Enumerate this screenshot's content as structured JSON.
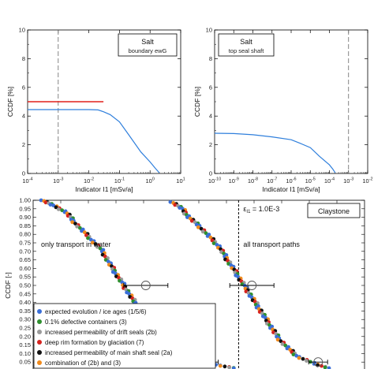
{
  "chart_data": [
    {
      "type": "line",
      "panel": "top-left",
      "box_title": "Salt",
      "box_subtitle": "boundary ewG",
      "xlabel": "Indicator I1 [mSv/a]",
      "ylabel": "CCDF [%]",
      "xscale": "log",
      "xlim": [
        0.0001,
        10
      ],
      "ylim": [
        0,
        10
      ],
      "xtick_exponents": [
        "-4",
        "-3",
        "-2",
        "-1",
        "0",
        "1"
      ],
      "yticks": [
        "0",
        "2",
        "4",
        "6",
        "8",
        "10"
      ],
      "reference_line": {
        "y": 5.0,
        "x_end": 0.03,
        "color": "#e0201c"
      },
      "vline_x": 0.001,
      "series": [
        {
          "color": "#2f7fdc",
          "points": [
            [
              0.0001,
              4.45
            ],
            [
              0.003,
              4.45
            ],
            [
              0.01,
              4.45
            ],
            [
              0.02,
              4.43
            ],
            [
              0.03,
              4.3
            ],
            [
              0.05,
              4.1
            ],
            [
              0.1,
              3.6
            ],
            [
              0.2,
              2.7
            ],
            [
              0.5,
              1.5
            ],
            [
              1.0,
              0.8
            ],
            [
              1.5,
              0.35
            ],
            [
              2.0,
              0.05
            ]
          ]
        }
      ]
    },
    {
      "type": "line",
      "panel": "top-right",
      "box_title": "Salt",
      "box_subtitle": "top seal shaft",
      "xlabel": "Indicator I1 [mSv/a]",
      "ylabel": "CCDF [%]",
      "xscale": "log",
      "xlim": [
        1e-10,
        0.01
      ],
      "ylim": [
        0,
        10
      ],
      "xtick_exponents": [
        "-10",
        "-9",
        "-8",
        "-7",
        "-6",
        "-5",
        "-4",
        "-3",
        "-2"
      ],
      "yticks": [
        "0",
        "2",
        "4",
        "6",
        "8",
        "10"
      ],
      "vline_x": 0.001,
      "series": [
        {
          "color": "#2f7fdc",
          "points": [
            [
              1e-10,
              2.8
            ],
            [
              1e-09,
              2.78
            ],
            [
              1e-08,
              2.7
            ],
            [
              1e-07,
              2.55
            ],
            [
              1e-06,
              2.35
            ],
            [
              3e-06,
              2.1
            ],
            [
              1e-05,
              1.8
            ],
            [
              3e-05,
              1.2
            ],
            [
              0.0001,
              0.6
            ],
            [
              0.00015,
              0.3
            ],
            [
              0.0002,
              0.05
            ]
          ]
        }
      ]
    },
    {
      "type": "scatter",
      "panel": "bottom",
      "box_title": "Claystone",
      "ylabel": "CCDF [-]",
      "ylim": [
        0,
        1
      ],
      "yticks": [
        "0.00",
        "0.05",
        "0.10",
        "0.15",
        "0.20",
        "0.25",
        "0.30",
        "0.35",
        "0.40",
        "0.45",
        "0.50",
        "0.55",
        "0.60",
        "0.65",
        "0.70",
        "0.75",
        "0.80",
        "0.85",
        "0.90",
        "0.95",
        "1.00"
      ],
      "annotation_epsilon": "ε",
      "annotation_epsilon_sub": "I1",
      "annotation_value": " = 1.0E-3",
      "label_left": "only transport in water",
      "label_right": "all transport paths",
      "legend": [
        {
          "label": "expected evolution / ice ages (1/5/6)",
          "color": "#3a6fd8"
        },
        {
          "label": "0.1% defective containers (3)",
          "color": "#2f8f2f"
        },
        {
          "label": "increased permeability of drift seals (2b)",
          "color": "#9a9a9a"
        },
        {
          "label": "deep rim formation  by glaciation (7)",
          "color": "#d6231f"
        },
        {
          "label": "increased permeability of main  shaft seal (2a)",
          "color": "#111111"
        },
        {
          "label": "combination of (2b) and (3)",
          "color": "#f08a1c"
        }
      ],
      "curve_left": {
        "y": [
          1.0,
          0.97,
          0.93,
          0.88,
          0.82,
          0.76,
          0.7,
          0.63,
          0.57,
          0.51,
          0.45,
          0.39,
          0.33,
          0.27,
          0.21,
          0.15,
          0.1,
          0.06,
          0.03,
          0.01
        ],
        "x_rel": [
          0.03,
          0.06,
          0.1,
          0.12,
          0.15,
          0.18,
          0.21,
          0.23,
          0.25,
          0.27,
          0.29,
          0.31,
          0.33,
          0.35,
          0.37,
          0.4,
          0.45,
          0.5,
          0.56,
          0.62
        ]
      },
      "curve_right": {
        "y": [
          0.99,
          0.95,
          0.9,
          0.85,
          0.79,
          0.73,
          0.67,
          0.61,
          0.55,
          0.49,
          0.43,
          0.37,
          0.31,
          0.25,
          0.19,
          0.13,
          0.08,
          0.04,
          0.01
        ],
        "x_rel": [
          0.42,
          0.45,
          0.47,
          0.5,
          0.53,
          0.56,
          0.58,
          0.6,
          0.62,
          0.64,
          0.66,
          0.68,
          0.7,
          0.72,
          0.74,
          0.77,
          0.8,
          0.85,
          0.9
        ]
      },
      "epsilon_line_x_rel": 0.62,
      "circles": [
        {
          "x_rel": 0.34,
          "y": 0.5
        },
        {
          "x_rel": 0.66,
          "y": 0.5
        },
        {
          "x_rel": 0.53,
          "y": 0.05
        },
        {
          "x_rel": 0.86,
          "y": 0.05
        }
      ]
    }
  ]
}
